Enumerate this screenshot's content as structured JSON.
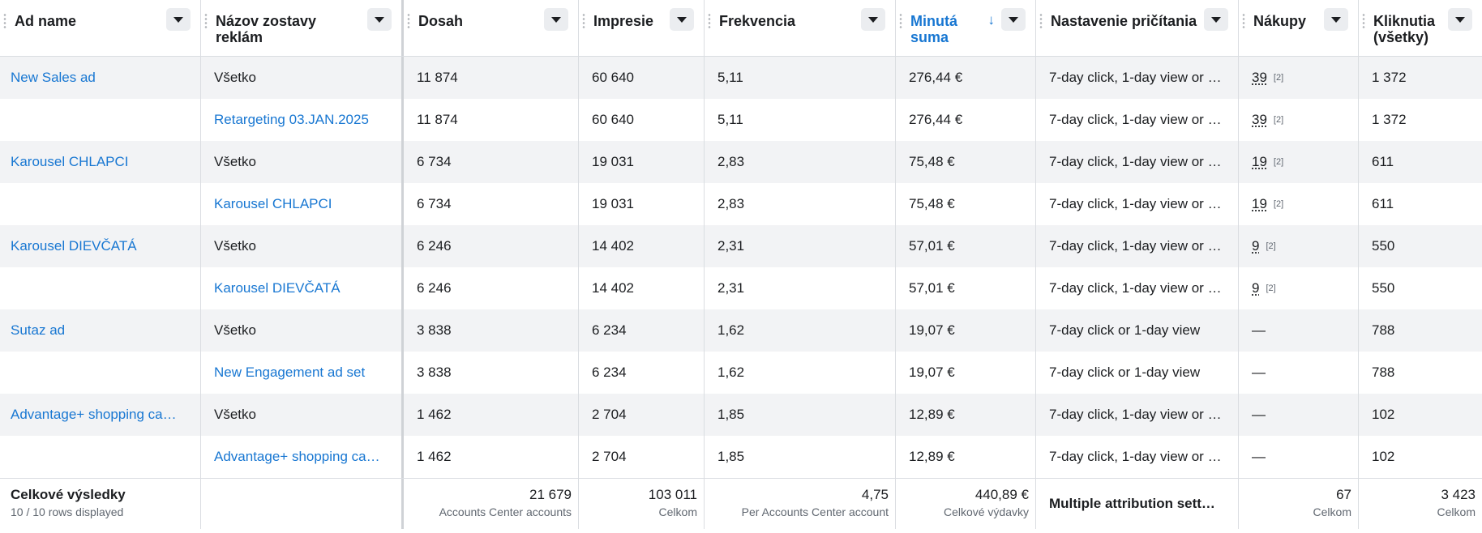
{
  "columns": [
    {
      "label": "Ad name"
    },
    {
      "label": "Názov zostavy reklám"
    },
    {
      "label": "Dosah"
    },
    {
      "label": "Impresie"
    },
    {
      "label": "Frekvencia"
    },
    {
      "label": "Minutá suma",
      "sort_arrow": "↓"
    },
    {
      "label": "Nastavenie pričítania"
    },
    {
      "label": "Nákupy"
    },
    {
      "label": "Kliknutia (všetky)"
    }
  ],
  "rows": [
    {
      "ad_name": "New Sales ad",
      "ad_set": "Všetko",
      "reach": "11 874",
      "impressions": "60 640",
      "frequency": "5,11",
      "spent": "276,44 €",
      "attribution": "7-day click, 1-day view or …",
      "purchases": "39",
      "purchases_note": "[2]",
      "clicks": "1 372"
    },
    {
      "ad_name": "",
      "ad_set": "Retargeting 03.JAN.2025",
      "reach": "11 874",
      "impressions": "60 640",
      "frequency": "5,11",
      "spent": "276,44 €",
      "attribution": "7-day click, 1-day view or …",
      "purchases": "39",
      "purchases_note": "[2]",
      "clicks": "1 372"
    },
    {
      "ad_name": "Karousel CHLAPCI",
      "ad_set": "Všetko",
      "reach": "6 734",
      "impressions": "19 031",
      "frequency": "2,83",
      "spent": "75,48 €",
      "attribution": "7-day click, 1-day view or …",
      "purchases": "19",
      "purchases_note": "[2]",
      "clicks": "611"
    },
    {
      "ad_name": "",
      "ad_set": "Karousel CHLAPCI",
      "reach": "6 734",
      "impressions": "19 031",
      "frequency": "2,83",
      "spent": "75,48 €",
      "attribution": "7-day click, 1-day view or …",
      "purchases": "19",
      "purchases_note": "[2]",
      "clicks": "611"
    },
    {
      "ad_name": "Karousel DIEVČATÁ",
      "ad_set": "Všetko",
      "reach": "6 246",
      "impressions": "14 402",
      "frequency": "2,31",
      "spent": "57,01 €",
      "attribution": "7-day click, 1-day view or …",
      "purchases": "9",
      "purchases_note": "[2]",
      "clicks": "550"
    },
    {
      "ad_name": "",
      "ad_set": "Karousel DIEVČATÁ",
      "reach": "6 246",
      "impressions": "14 402",
      "frequency": "2,31",
      "spent": "57,01 €",
      "attribution": "7-day click, 1-day view or …",
      "purchases": "9",
      "purchases_note": "[2]",
      "clicks": "550"
    },
    {
      "ad_name": "Sutaz ad",
      "ad_set": "Všetko",
      "reach": "3 838",
      "impressions": "6 234",
      "frequency": "1,62",
      "spent": "19,07 €",
      "attribution": "7-day click or 1-day view",
      "purchases": "—",
      "purchases_note": "",
      "clicks": "788"
    },
    {
      "ad_name": "",
      "ad_set": "New Engagement ad set",
      "reach": "3 838",
      "impressions": "6 234",
      "frequency": "1,62",
      "spent": "19,07 €",
      "attribution": "7-day click or 1-day view",
      "purchases": "—",
      "purchases_note": "",
      "clicks": "788"
    },
    {
      "ad_name": "Advantage+ shopping ca…",
      "ad_set": "Všetko",
      "reach": "1 462",
      "impressions": "2 704",
      "frequency": "1,85",
      "spent": "12,89 €",
      "attribution": "7-day click, 1-day view or …",
      "purchases": "—",
      "purchases_note": "",
      "clicks": "102"
    },
    {
      "ad_name": "",
      "ad_set": "Advantage+ shopping ca…",
      "reach": "1 462",
      "impressions": "2 704",
      "frequency": "1,85",
      "spent": "12,89 €",
      "attribution": "7-day click, 1-day view or …",
      "purchases": "—",
      "purchases_note": "",
      "clicks": "102"
    }
  ],
  "footer": {
    "title": "Celkové výsledky",
    "rows_displayed": "10 / 10 rows displayed",
    "reach": {
      "value": "21 679",
      "sub": "Accounts Center accounts"
    },
    "impressions": {
      "value": "103 011",
      "sub": "Celkom"
    },
    "frequency": {
      "value": "4,75",
      "sub": "Per Accounts Center account"
    },
    "spent": {
      "value": "440,89 €",
      "sub": "Celkové výdavky"
    },
    "attribution": "Multiple attribution sett…",
    "purchases": {
      "value": "67",
      "sub": "Celkom"
    },
    "clicks": {
      "value": "3 423",
      "sub": "Celkom"
    }
  },
  "colors": {
    "link": "#1877d2",
    "row_shade": "#f2f3f5",
    "border": "#dadde1"
  }
}
